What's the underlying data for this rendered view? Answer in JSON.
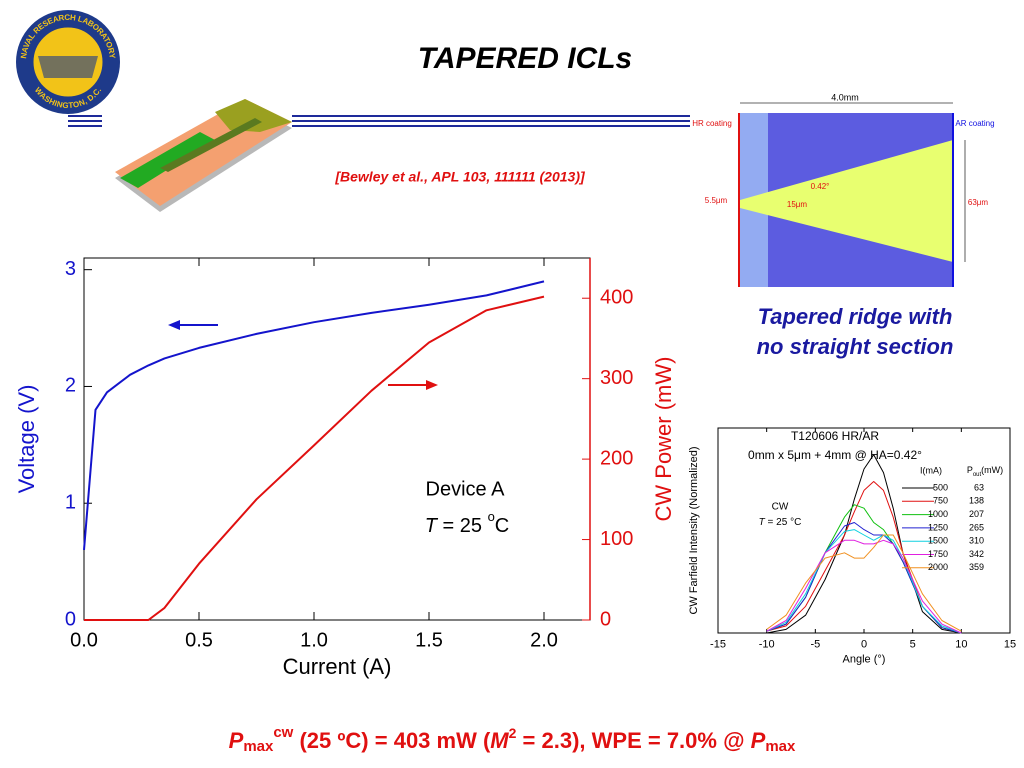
{
  "logo": {
    "top": "NAVAL RESEARCH LABORATORY",
    "bottom": "WASHINGTON, D.C."
  },
  "title": "TAPERED  ICLs",
  "citation": "[Bewley et al., APL 103, 111111 (2013)]",
  "diagram": {
    "length": "4.0mm",
    "hr": "HR coating",
    "ar": "AR coating",
    "input_width": "5.5μm",
    "angle": "0.42°",
    "gap": "15μm",
    "output_width": "63μm"
  },
  "caption": [
    "Tapered ridge with",
    "no straight section"
  ],
  "footer": [
    "P",
    "max",
    "cw",
    " (25 ºC) = 403 mW (",
    "M",
    "2",
    " = 2.3), WPE = 7.0% @ ",
    "P",
    "max"
  ],
  "chart_data": [
    {
      "type": "line",
      "xlabel": "Current (A)",
      "ylabel": "Voltage (V)",
      "y2label": "CW Power (mW)",
      "annotation": "Device A",
      "annotation2": [
        "T",
        " = 25 ",
        "o",
        "C"
      ],
      "x": [
        0.0,
        0.05,
        0.1,
        0.2,
        0.28,
        0.35,
        0.5,
        0.75,
        1.0,
        1.25,
        1.5,
        1.75,
        2.0
      ],
      "series": [
        {
          "name": "Voltage",
          "color": "#1414cc",
          "values": [
            0.6,
            1.8,
            1.95,
            2.1,
            2.18,
            2.24,
            2.33,
            2.45,
            2.55,
            2.63,
            2.7,
            2.78,
            2.9
          ]
        },
        {
          "name": "CW Power",
          "color": "#e01010",
          "axis": "y2",
          "values": [
            0,
            0,
            0,
            0,
            0,
            15,
            70,
            150,
            217,
            285,
            345,
            385,
            402
          ]
        }
      ],
      "xlim": [
        0,
        2.2
      ],
      "xticks": [
        {
          "value": 0,
          "label": "0.0"
        },
        0.5,
        {
          "value": 1,
          "label": "1.0"
        },
        1.5,
        {
          "value": 2,
          "label": "2.0"
        }
      ],
      "ylim": [
        0,
        3.1
      ],
      "yticks": [
        0,
        1,
        2,
        3
      ],
      "y2lim": [
        0,
        450
      ],
      "y2ticks": [
        0,
        100,
        200,
        300,
        400
      ]
    },
    {
      "type": "line",
      "title": "T120606 HR/AR",
      "subtitle": "0mm x 5μm + 4mm @ HA=0.42°",
      "xlabel": "Angle (°)",
      "ylabel": "CW Farfield Intensity (Normalized)",
      "annotation": "CW",
      "annotation2": [
        "T",
        " = 25 °C"
      ],
      "legend_current_header": "I(mA)",
      "legend_power_header": {
        "main": "P",
        "sub": "out",
        "unit": "(mW)"
      },
      "x": [
        -10,
        -8,
        -6,
        -4,
        -2,
        -1,
        0,
        1,
        2,
        3,
        4,
        6,
        8,
        10
      ],
      "series": [
        {
          "name": "500",
          "pout": "63",
          "color": "#000000",
          "values": [
            0,
            0.02,
            0.1,
            0.3,
            0.55,
            0.75,
            0.92,
            1.0,
            0.9,
            0.7,
            0.45,
            0.12,
            0.02,
            0
          ]
        },
        {
          "name": "750",
          "pout": "138",
          "color": "#e01010",
          "values": [
            0.01,
            0.04,
            0.15,
            0.35,
            0.55,
            0.68,
            0.8,
            0.85,
            0.8,
            0.65,
            0.45,
            0.15,
            0.03,
            0
          ]
        },
        {
          "name": "1000",
          "pout": "207",
          "color": "#10c010",
          "values": [
            0.01,
            0.05,
            0.2,
            0.45,
            0.65,
            0.72,
            0.7,
            0.62,
            0.58,
            0.5,
            0.4,
            0.15,
            0.03,
            0
          ]
        },
        {
          "name": "1250",
          "pout": "265",
          "color": "#2020d0",
          "values": [
            0.01,
            0.05,
            0.2,
            0.45,
            0.6,
            0.62,
            0.58,
            0.55,
            0.55,
            0.5,
            0.4,
            0.15,
            0.03,
            0
          ]
        },
        {
          "name": "1500",
          "pout": "310",
          "color": "#10d0e0",
          "values": [
            0.01,
            0.06,
            0.22,
            0.45,
            0.57,
            0.58,
            0.55,
            0.52,
            0.55,
            0.52,
            0.42,
            0.15,
            0.04,
            0
          ]
        },
        {
          "name": "1750",
          "pout": "342",
          "color": "#e020e0",
          "values": [
            0.01,
            0.07,
            0.25,
            0.45,
            0.52,
            0.52,
            0.5,
            0.5,
            0.52,
            0.5,
            0.42,
            0.18,
            0.05,
            0
          ]
        },
        {
          "name": "2000",
          "pout": "359",
          "color": "#f09020",
          "values": [
            0.02,
            0.1,
            0.28,
            0.42,
            0.45,
            0.42,
            0.42,
            0.48,
            0.55,
            0.55,
            0.45,
            0.22,
            0.07,
            0.01
          ]
        }
      ],
      "xlim": [
        -15,
        15
      ],
      "xticks": [
        -15,
        -10,
        -5,
        0,
        5,
        10,
        15
      ],
      "ylim": [
        0,
        1.15
      ]
    }
  ]
}
